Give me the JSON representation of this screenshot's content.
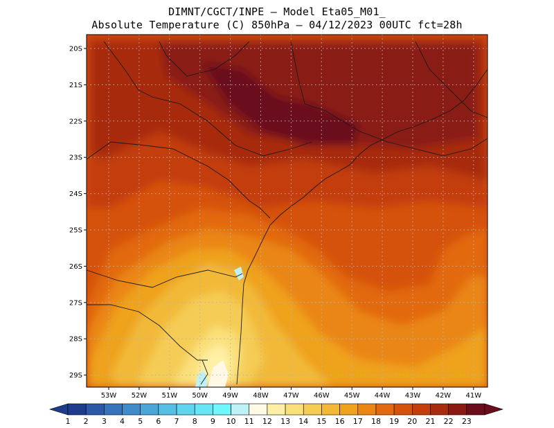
{
  "title": {
    "line1": "DIMNT/CGCT/INPE –  Model Eta05_M01_",
    "line2": "Absolute Temperature (C) 850hPa –  04/12/2023 00UTC fct=28h"
  },
  "map": {
    "lat_labels": [
      "20S",
      "21S",
      "22S",
      "23S",
      "24S",
      "25S",
      "26S",
      "27S",
      "28S",
      "29S"
    ],
    "lon_labels": [
      "53W",
      "52W",
      "51W",
      "50W",
      "49W",
      "48W",
      "47W",
      "46W",
      "45W",
      "44W",
      "43W",
      "42W",
      "41W"
    ]
  },
  "colorbar": {
    "labels": [
      "1",
      "2",
      "3",
      "4",
      "5",
      "6",
      "7",
      "8",
      "9",
      "10",
      "11",
      "12",
      "13",
      "14",
      "15",
      "16",
      "17",
      "18",
      "19",
      "20",
      "21",
      "22",
      "23"
    ],
    "colors": [
      "#1e3c8c",
      "#2b59a8",
      "#3574bb",
      "#3f8cca",
      "#4aa5d8",
      "#55bfe4",
      "#5fd6ee",
      "#66e6f5",
      "#6ff7fb",
      "#bff2f7",
      "#fff9e6",
      "#fff0a6",
      "#fae07a",
      "#f5cc55",
      "#f2b937",
      "#efa21f",
      "#ea8614",
      "#e2690f",
      "#d5520c",
      "#c33e0b",
      "#a82b0e",
      "#8a1a12",
      "#6b0d1c"
    ]
  }
}
